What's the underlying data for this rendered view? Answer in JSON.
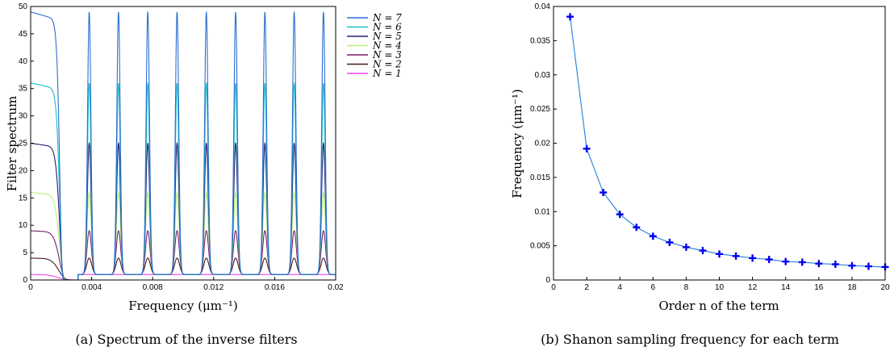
{
  "chart_data": [
    {
      "type": "line",
      "caption": "(a) Spectrum of the inverse filters",
      "xlabel": "Frequency (μm⁻¹)",
      "ylabel": "Filter spectrum",
      "xlim": [
        0,
        0.02
      ],
      "ylim": [
        0,
        50
      ],
      "xticks": [
        0,
        0.004,
        0.008,
        0.012,
        0.016,
        0.02
      ],
      "xtick_labels": [
        "0",
        "0.004",
        "0.008",
        "0.012",
        "0.016",
        "0.02"
      ],
      "yticks": [
        0,
        5,
        10,
        15,
        20,
        25,
        30,
        35,
        40,
        45,
        50
      ],
      "ytick_labels": [
        "0",
        "5",
        "10",
        "15",
        "20",
        "25",
        "30",
        "35",
        "40",
        "45",
        "50"
      ],
      "grid": false,
      "legend_position": "top-right",
      "period": 0.00192,
      "main_lobe_width": 0.0031,
      "series": [
        {
          "name": "N = 7",
          "N": 7,
          "peak": 49,
          "color": "#2a6fd0"
        },
        {
          "name": "N = 6",
          "N": 6,
          "peak": 36,
          "color": "#17c0c8"
        },
        {
          "name": "N = 5",
          "N": 5,
          "peak": 25,
          "color": "#2b1c6e"
        },
        {
          "name": "N = 4",
          "N": 4,
          "peak": 16,
          "color": "#b8f07a"
        },
        {
          "name": "N = 3",
          "N": 3,
          "peak": 9,
          "color": "#7a1f6e"
        },
        {
          "name": "N = 2",
          "N": 2,
          "peak": 4,
          "color": "#4a1818"
        },
        {
          "name": "N = 1",
          "N": 1,
          "peak": 1,
          "color": "#ee44ee"
        }
      ]
    },
    {
      "type": "line",
      "caption": "(b) Shanon sampling frequency for each term",
      "xlabel": "Order n of the term",
      "ylabel": "Frequency (μm⁻¹)",
      "xlim": [
        0,
        20
      ],
      "ylim": [
        0,
        0.04
      ],
      "xticks": [
        0,
        2,
        4,
        6,
        8,
        10,
        12,
        14,
        16,
        18,
        20
      ],
      "xtick_labels": [
        "0",
        "2",
        "4",
        "6",
        "8",
        "10",
        "12",
        "14",
        "16",
        "18",
        "20"
      ],
      "yticks": [
        0,
        0.005,
        0.01,
        0.015,
        0.02,
        0.025,
        0.03,
        0.035,
        0.04
      ],
      "ytick_labels": [
        "0",
        "0.005",
        "0.01",
        "0.015",
        "0.02",
        "0.025",
        "0.03",
        "0.035",
        "0.04"
      ],
      "grid": false,
      "line_color": "#1f7fd8",
      "marker_color": "#0000ee",
      "x": [
        1,
        2,
        3,
        4,
        5,
        6,
        7,
        8,
        9,
        10,
        11,
        12,
        13,
        14,
        15,
        16,
        17,
        18,
        19,
        20
      ],
      "y": [
        0.0385,
        0.0192,
        0.0128,
        0.0096,
        0.0077,
        0.0064,
        0.0055,
        0.0048,
        0.0043,
        0.0038,
        0.0035,
        0.0032,
        0.003,
        0.0027,
        0.0026,
        0.0024,
        0.0023,
        0.0021,
        0.002,
        0.0019
      ]
    }
  ]
}
